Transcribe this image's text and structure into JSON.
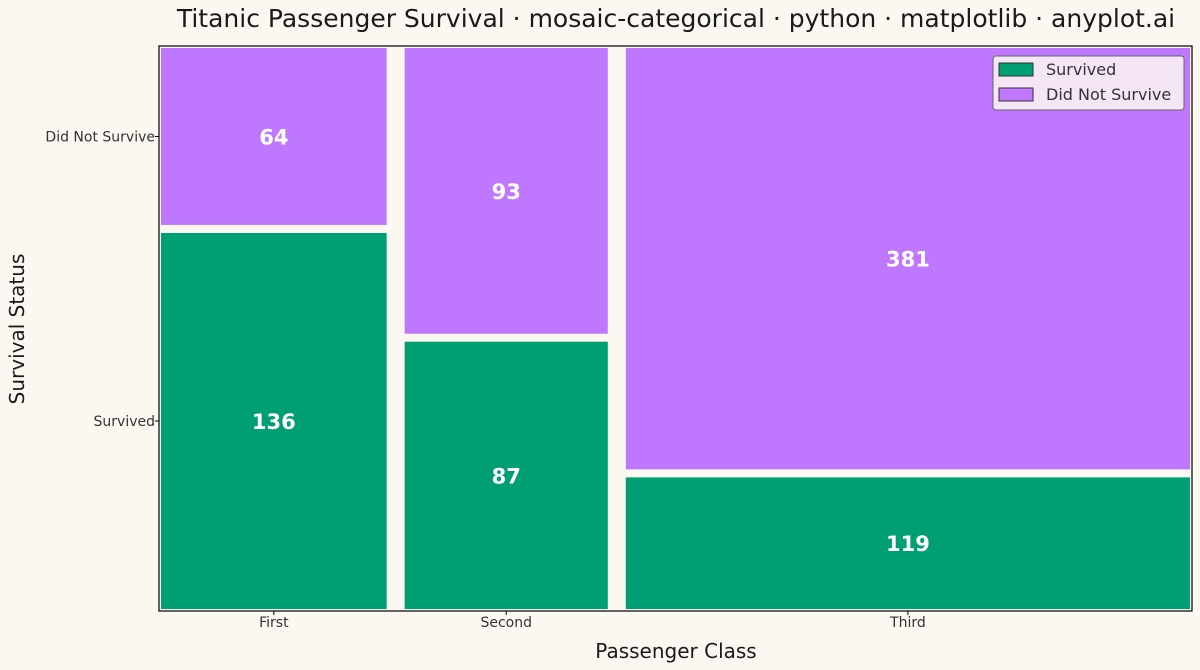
{
  "chart_data": {
    "type": "mosaic",
    "title": "Titanic Passenger Survival · mosaic-categorical · python · matplotlib · anyplot.ai",
    "xlabel": "Passenger Class",
    "ylabel": "Survival Status",
    "categories": [
      "First",
      "Second",
      "Third"
    ],
    "y_categories": [
      "Survived",
      "Did Not Survive"
    ],
    "series": [
      {
        "name": "Survived",
        "color": "#009E73",
        "values": [
          136,
          87,
          119
        ]
      },
      {
        "name": "Did Not Survive",
        "color": "#C077FF",
        "values": [
          64,
          93,
          381
        ]
      }
    ],
    "legend": {
      "position": "top-right",
      "entries": [
        "Survived",
        "Did Not Survive"
      ]
    },
    "colors": {
      "background": "#FAF8F1",
      "survived": "#009E73",
      "did_not_survive": "#C077FF",
      "label": "#FFFFFF",
      "axis": "#000000",
      "legend_bg": "#F5E6F5"
    }
  }
}
